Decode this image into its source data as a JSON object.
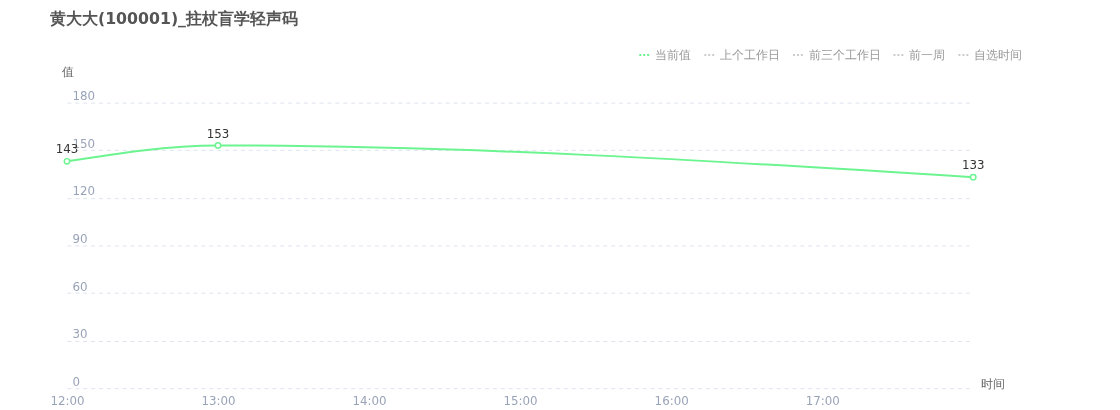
{
  "chart_data": {
    "type": "line",
    "title": "黄大大(100001)_拄杖盲学轻声码",
    "xlabel": "时间",
    "ylabel": "值",
    "x": [
      12,
      13,
      18
    ],
    "series": [
      {
        "name": "当前值",
        "color": "#6cf490",
        "values": [
          143,
          153,
          133
        ]
      },
      {
        "name": "上个工作日",
        "color": "#cccccc",
        "values": [
          null,
          null,
          null
        ]
      },
      {
        "name": "前三个工作日",
        "color": "#cccccc",
        "values": [
          null,
          null,
          null
        ]
      },
      {
        "name": "前一周",
        "color": "#cccccc",
        "values": [
          null,
          null,
          null
        ]
      },
      {
        "name": "自选时间",
        "color": "#cccccc",
        "values": [
          null,
          null,
          null
        ]
      }
    ],
    "xlim": [
      12,
      18
    ],
    "xticks": [
      {
        "value": 12,
        "label": "12:00"
      },
      {
        "value": 13,
        "label": "13:00"
      },
      {
        "value": 14,
        "label": "14:00"
      },
      {
        "value": 15,
        "label": "15:00"
      },
      {
        "value": 16,
        "label": "16:00"
      },
      {
        "value": 17,
        "label": "17:00"
      }
    ],
    "ylim": [
      0,
      180
    ],
    "yticks": [
      0,
      30,
      60,
      90,
      120,
      150,
      180
    ],
    "grid": "y",
    "legend": "top right",
    "marker": "circle",
    "line_style": "solid",
    "data_labels": true
  }
}
